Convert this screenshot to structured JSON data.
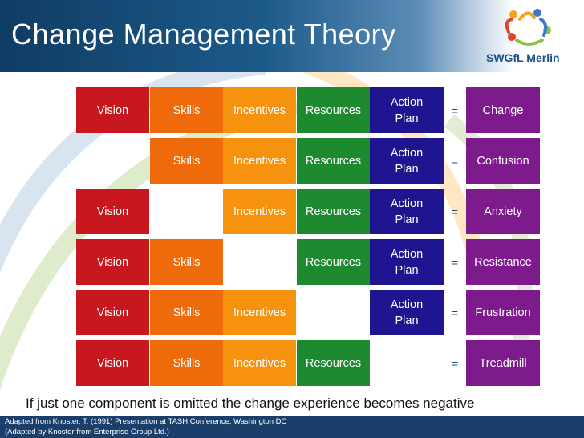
{
  "slide": {
    "title": "Change Management Theory",
    "logo_text": "SWGfL Merlin",
    "note": "If just one component is omitted the change experience becomes negative",
    "footer_line1": "Adapted from Knoster, T. (1991) Presentation at TASH Conference, Washington DC",
    "footer_line2": "(Adapted by Knoster from Enterprise Group Ltd.)"
  },
  "colors": {
    "vision": "#c8171e",
    "skills": "#ee6a0a",
    "incentives": "#f7920f",
    "resources": "#1e8a30",
    "action_plan": "#1f1591",
    "outcome": "#7d1b8d"
  },
  "equals_sign": "=",
  "rows": [
    {
      "vision": "Vision",
      "skills": "Skills",
      "incentives": "Incentives",
      "resources": "Resources",
      "action_plan": "Action Plan",
      "outcome": "Change"
    },
    {
      "vision": "",
      "skills": "Skills",
      "incentives": "Incentives",
      "resources": "Resources",
      "action_plan": "Action Plan",
      "outcome": "Confusion"
    },
    {
      "vision": "Vision",
      "skills": "",
      "incentives": "Incentives",
      "resources": "Resources",
      "action_plan": "Action Plan",
      "outcome": "Anxiety"
    },
    {
      "vision": "Vision",
      "skills": "Skills",
      "incentives": "",
      "resources": "Resources",
      "action_plan": "Action Plan",
      "outcome": "Resistance"
    },
    {
      "vision": "Vision",
      "skills": "Skills",
      "incentives": "Incentives",
      "resources": "",
      "action_plan": "Action Plan",
      "outcome": "Frustration"
    },
    {
      "vision": "Vision",
      "skills": "Skills",
      "incentives": "Incentives",
      "resources": "Resources",
      "action_plan": "",
      "outcome": "Treadmill"
    }
  ]
}
